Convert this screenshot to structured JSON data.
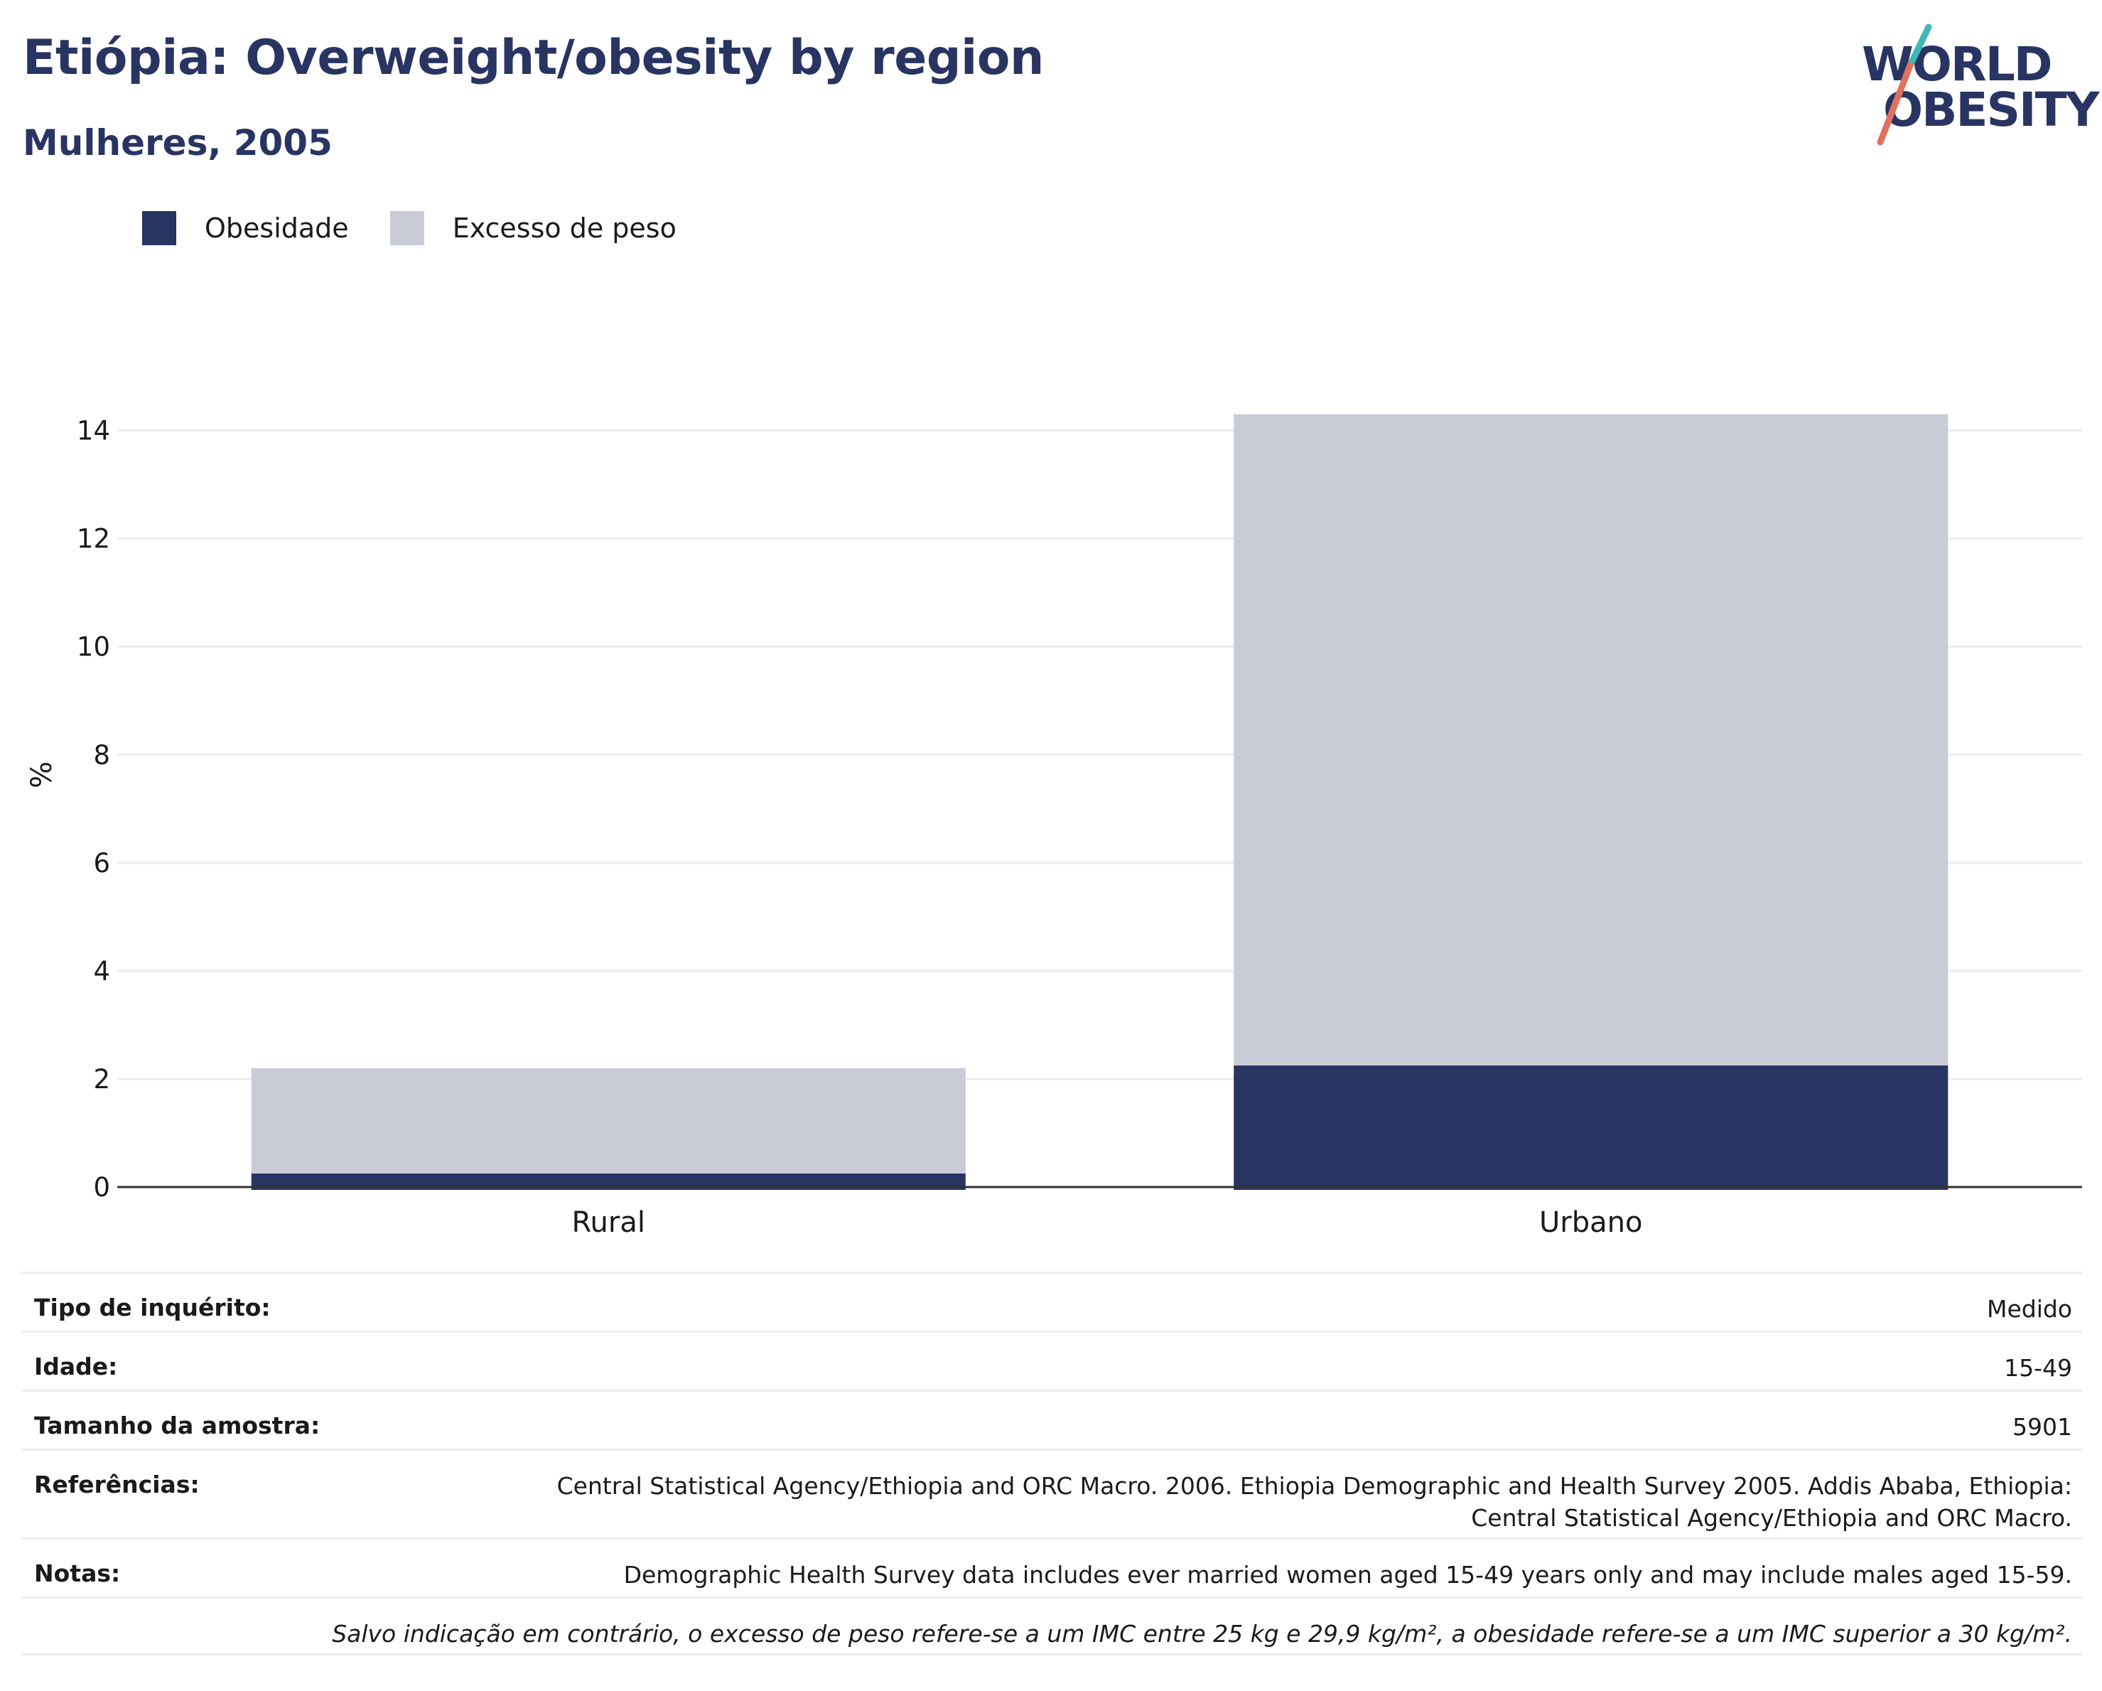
{
  "header": {
    "title": "Etiópia: Overweight/obesity by region",
    "subtitle": "Mulheres, 2005"
  },
  "logo": {
    "line1": "WORLD",
    "line2": "OBESITY"
  },
  "legend": {
    "items": [
      {
        "label": "Obesidade",
        "color": "#283562"
      },
      {
        "label": "Excesso de peso",
        "color": "#c9cbd6"
      }
    ]
  },
  "chart_data": {
    "type": "bar",
    "stacked": true,
    "categories": [
      "Rural",
      "Urbano"
    ],
    "series": [
      {
        "name": "Obesidade",
        "values": [
          0.25,
          2.25
        ],
        "color": "#283562"
      },
      {
        "name": "Excesso de peso",
        "values": [
          1.95,
          12.05
        ],
        "color": "#c9cbd6"
      }
    ],
    "ylabel": "%",
    "ylim": [
      0,
      14.6
    ],
    "yticks": [
      0,
      2,
      4,
      6,
      8,
      10,
      12,
      14
    ],
    "grid": true,
    "legend_position": "top-left"
  },
  "meta": {
    "survey_type": {
      "label": "Tipo de inquérito:",
      "value": "Medido"
    },
    "age": {
      "label": "Idade:",
      "value": "15-49"
    },
    "sample_size": {
      "label": "Tamanho da amostra:",
      "value": "5901"
    },
    "references": {
      "label": "Referências:",
      "value_line1": "Central Statistical Agency/Ethiopia and ORC Macro. 2006. Ethiopia Demographic and Health Survey 2005. Addis Ababa, Ethiopia:",
      "value_line2": "Central Statistical Agency/Ethiopia and ORC Macro."
    },
    "notes": {
      "label": "Notas:",
      "value": "Demographic Health Survey data includes ever married women aged 15-49 years only and may include males aged 15-59."
    },
    "footnote": "Salvo indicação em contrário, o excesso de peso refere-se a um IMC entre 25 kg e 29,9 kg/m², a obesidade refere-se a um IMC superior a 30 kg/m²."
  }
}
